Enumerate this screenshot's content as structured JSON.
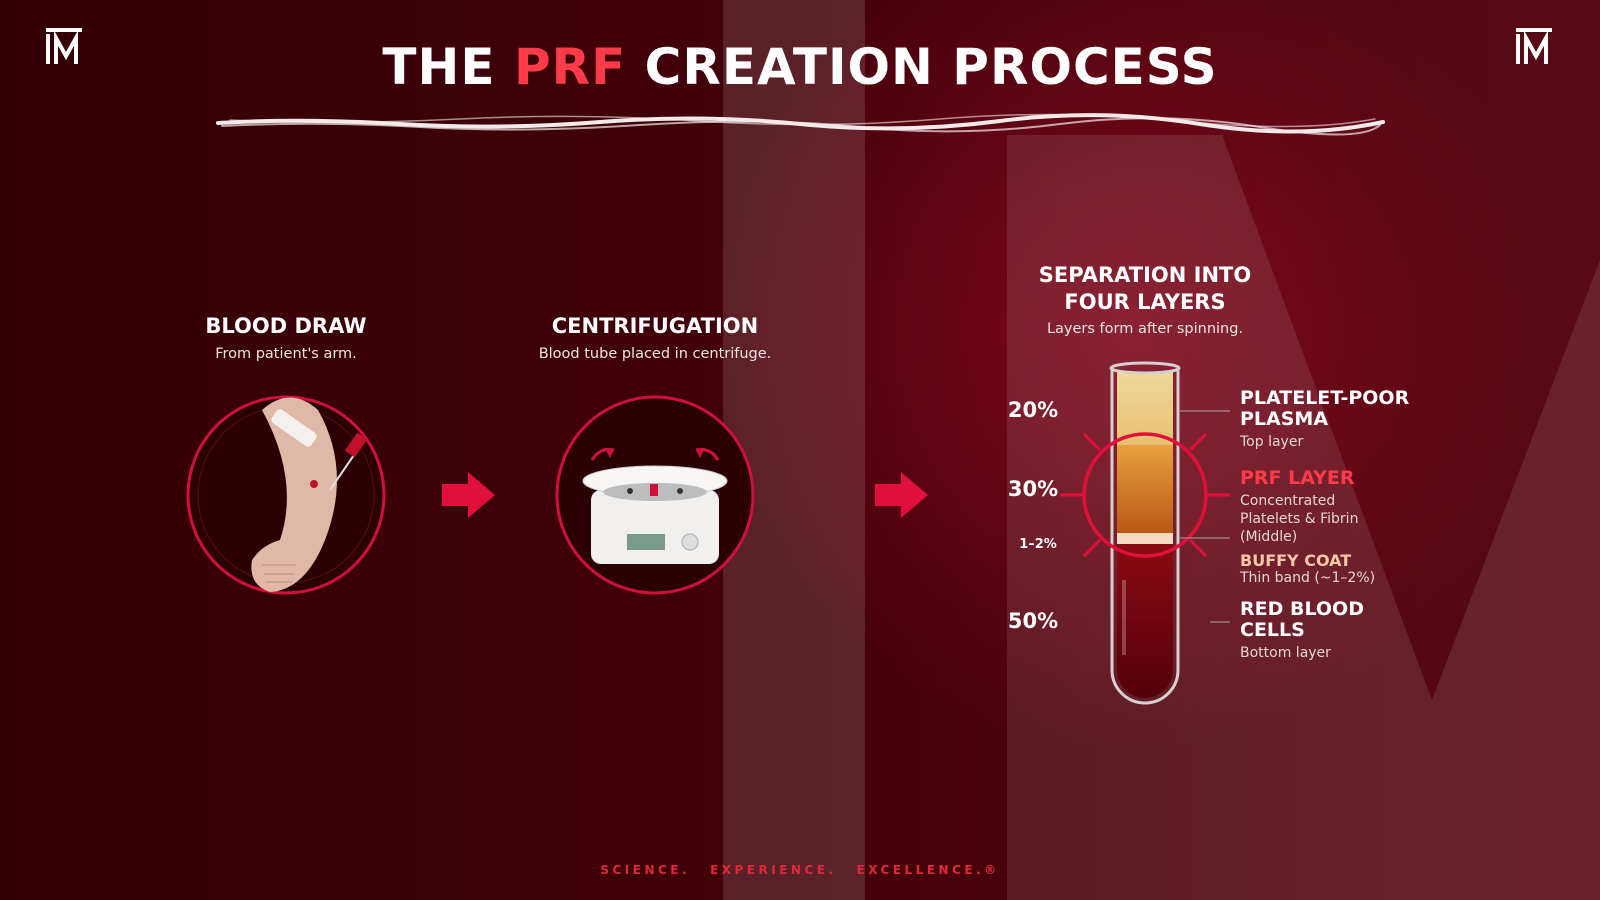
{
  "header": {
    "title_parts": [
      "THE",
      "PRF",
      "CREATION PROCESS"
    ]
  },
  "steps": [
    {
      "title": "BLOOD DRAW",
      "subtitle": "From patient's arm."
    },
    {
      "title": "CENTRIFUGATION",
      "subtitle": "Blood tube placed in centrifuge."
    },
    {
      "title": "SEPARATION INTO FOUR LAYERS",
      "subtitle": "Layers form after spinning."
    }
  ],
  "layers": [
    {
      "percent": "20%",
      "name": "PLATELET-POOR PLASMA",
      "description": "Top layer"
    },
    {
      "percent": "30%",
      "name": "PRF LAYER",
      "description": "Concentrated Platelets & Fibrin (Middle)"
    },
    {
      "percent": "1–2%",
      "name": "BUFFY COAT",
      "description": "Thin band (~1–2%)"
    },
    {
      "percent": "50%",
      "name": "RED BLOOD CELLS",
      "description": "Bottom layer"
    }
  ],
  "footer": [
    "SCIENCE.",
    "EXPERIENCE.",
    "EXCELLENCE.®"
  ]
}
